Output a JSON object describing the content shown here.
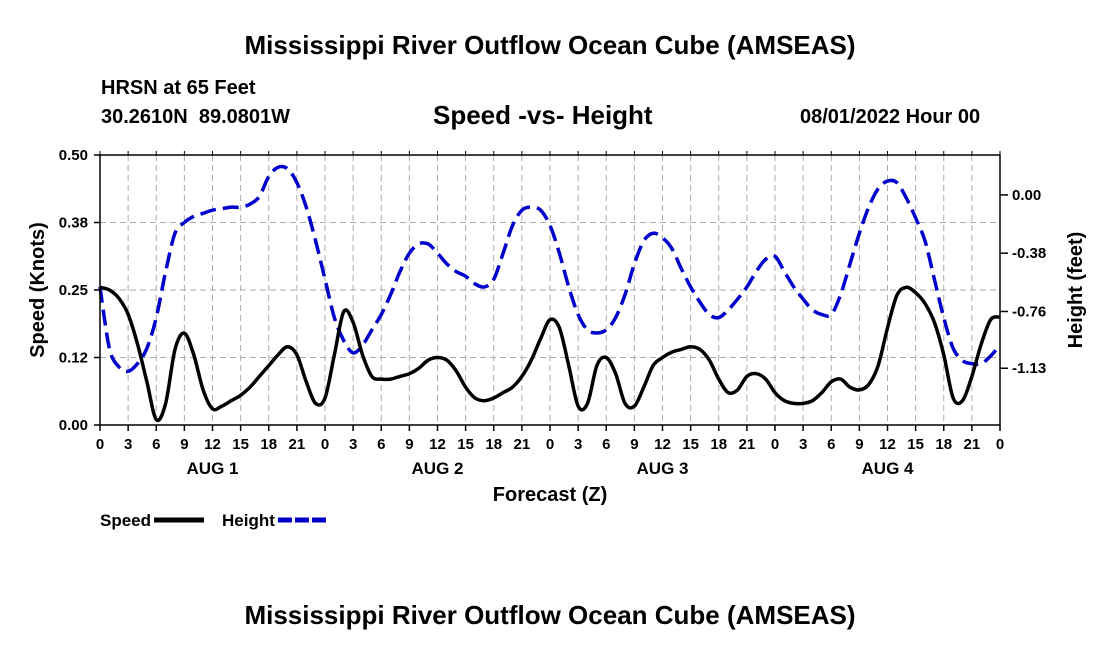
{
  "page": {
    "title_top": "Mississippi River Outflow Ocean Cube (AMSEAS)",
    "title_bottom": "Mississippi River Outflow Ocean Cube (AMSEAS)"
  },
  "header": {
    "station": "HRSN at 65 Feet",
    "coords": "30.2610N  89.0801W",
    "subtitle": "Speed -vs- Height",
    "datetime": "08/01/2022 Hour 00"
  },
  "chart_data": {
    "type": "line",
    "xlabel": "Forecast (Z)",
    "ylabel": "Speed (Knots)",
    "y2label": "Height (feet)",
    "x_range": [
      0,
      96
    ],
    "x_ticks": [
      0,
      3,
      6,
      9,
      12,
      15,
      18,
      21,
      24,
      27,
      30,
      33,
      36,
      39,
      42,
      45,
      48,
      51,
      54,
      57,
      60,
      63,
      66,
      69,
      72,
      75,
      78,
      81,
      84,
      87,
      90,
      93,
      96
    ],
    "x_tick_labels": [
      "0",
      "3",
      "6",
      "9",
      "12",
      "15",
      "18",
      "21",
      "0",
      "3",
      "6",
      "9",
      "12",
      "15",
      "18",
      "21",
      "0",
      "3",
      "6",
      "9",
      "12",
      "15",
      "18",
      "21",
      "0",
      "3",
      "6",
      "9",
      "12",
      "15",
      "18",
      "21",
      "0"
    ],
    "day_labels": [
      {
        "label": "AUG 1",
        "x": 12
      },
      {
        "label": "AUG 2",
        "x": 36
      },
      {
        "label": "AUG 3",
        "x": 60
      },
      {
        "label": "AUG 4",
        "x": 84
      }
    ],
    "ylim": [
      0,
      0.5
    ],
    "y_ticks": [
      0,
      0.125,
      0.25,
      0.375,
      0.5
    ],
    "y_tick_labels": [
      "0.00",
      "0.12",
      "0.25",
      "0.38",
      "0.50"
    ],
    "y2lim": [
      -1.5,
      0.26
    ],
    "y2_ticks": [
      0,
      -0.38,
      -0.76,
      -1.13
    ],
    "y2_tick_labels": [
      "0.00",
      "-0.38",
      "-0.76",
      "-1.13"
    ],
    "grid": true,
    "series": [
      {
        "name": "Speed",
        "axis": "left",
        "color": "#000000",
        "style": "solid",
        "x": [
          0,
          1,
          2,
          3,
          4,
          5,
          6,
          7,
          8,
          9,
          10,
          11,
          12,
          13,
          14,
          15,
          16,
          17,
          18,
          19,
          20,
          21,
          22,
          23,
          24,
          25,
          26,
          27,
          28,
          29,
          30,
          31,
          32,
          33,
          34,
          35,
          36,
          37,
          38,
          39,
          40,
          41,
          42,
          43,
          44,
          45,
          46,
          47,
          48,
          49,
          50,
          51,
          52,
          53,
          54,
          55,
          56,
          57,
          58,
          59,
          60,
          61,
          62,
          63,
          64,
          65,
          66,
          67,
          68,
          69,
          70,
          71,
          72,
          73,
          74,
          75,
          76,
          77,
          78,
          79,
          80,
          81,
          82,
          83,
          84,
          85,
          86,
          87,
          88,
          89,
          90,
          91,
          92,
          93,
          94,
          95,
          96
        ],
        "values": [
          0.255,
          0.25,
          0.235,
          0.205,
          0.15,
          0.08,
          0.01,
          0.04,
          0.14,
          0.17,
          0.13,
          0.065,
          0.03,
          0.035,
          0.045,
          0.055,
          0.07,
          0.09,
          0.11,
          0.13,
          0.145,
          0.13,
          0.08,
          0.04,
          0.05,
          0.13,
          0.21,
          0.19,
          0.13,
          0.09,
          0.085,
          0.085,
          0.09,
          0.095,
          0.105,
          0.12,
          0.125,
          0.12,
          0.1,
          0.07,
          0.05,
          0.045,
          0.05,
          0.06,
          0.07,
          0.09,
          0.12,
          0.16,
          0.195,
          0.18,
          0.11,
          0.035,
          0.04,
          0.11,
          0.125,
          0.095,
          0.04,
          0.035,
          0.07,
          0.11,
          0.125,
          0.135,
          0.14,
          0.145,
          0.14,
          0.12,
          0.085,
          0.06,
          0.065,
          0.09,
          0.095,
          0.085,
          0.06,
          0.045,
          0.04,
          0.04,
          0.045,
          0.06,
          0.08,
          0.085,
          0.07,
          0.065,
          0.075,
          0.11,
          0.18,
          0.24,
          0.255,
          0.245,
          0.225,
          0.19,
          0.13,
          0.05,
          0.045,
          0.09,
          0.15,
          0.195,
          0.2
        ]
      },
      {
        "name": "Height",
        "axis": "right",
        "color": "#0000cc",
        "style": "dashed",
        "x": [
          0,
          1,
          2,
          3,
          4,
          5,
          6,
          7,
          8,
          9,
          10,
          11,
          12,
          13,
          14,
          15,
          16,
          17,
          18,
          19,
          20,
          21,
          22,
          23,
          24,
          25,
          26,
          27,
          28,
          29,
          30,
          31,
          32,
          33,
          34,
          35,
          36,
          37,
          38,
          39,
          40,
          41,
          42,
          43,
          44,
          45,
          46,
          47,
          48,
          49,
          50,
          51,
          52,
          53,
          54,
          55,
          56,
          57,
          58,
          59,
          60,
          61,
          62,
          63,
          64,
          65,
          66,
          67,
          68,
          69,
          70,
          71,
          72,
          73,
          74,
          75,
          76,
          77,
          78,
          79,
          80,
          81,
          82,
          83,
          84,
          85,
          86,
          87,
          88,
          89,
          90,
          91,
          92,
          93,
          94,
          95,
          96
        ],
        "values": [
          -0.6,
          -1,
          -1.12,
          -1.15,
          -1.1,
          -1,
          -0.8,
          -0.5,
          -0.25,
          -0.18,
          -0.14,
          -0.12,
          -0.1,
          -0.09,
          -0.08,
          -0.08,
          -0.06,
          -0.01,
          0.12,
          0.18,
          0.17,
          0.08,
          -0.08,
          -0.3,
          -0.55,
          -0.8,
          -0.95,
          -1.03,
          -0.98,
          -0.88,
          -0.78,
          -0.65,
          -0.5,
          -0.38,
          -0.32,
          -0.32,
          -0.38,
          -0.45,
          -0.5,
          -0.53,
          -0.58,
          -0.6,
          -0.55,
          -0.38,
          -0.2,
          -0.1,
          -0.08,
          -0.1,
          -0.2,
          -0.38,
          -0.6,
          -0.78,
          -0.88,
          -0.9,
          -0.88,
          -0.8,
          -0.65,
          -0.45,
          -0.3,
          -0.25,
          -0.28,
          -0.35,
          -0.48,
          -0.6,
          -0.7,
          -0.78,
          -0.8,
          -0.75,
          -0.68,
          -0.6,
          -0.5,
          -0.42,
          -0.4,
          -0.5,
          -0.6,
          -0.68,
          -0.75,
          -0.78,
          -0.78,
          -0.65,
          -0.45,
          -0.25,
          -0.08,
          0.04,
          0.09,
          0.08,
          -0.02,
          -0.15,
          -0.3,
          -0.55,
          -0.8,
          -1,
          -1.08,
          -1.1,
          -1.1,
          -1.05,
          -0.98
        ]
      }
    ],
    "legend": [
      {
        "label": "Speed",
        "color": "#000000",
        "style": "solid"
      },
      {
        "label": "Height",
        "color": "#0000cc",
        "style": "dashed"
      }
    ],
    "legend_position": "bottom-left"
  }
}
